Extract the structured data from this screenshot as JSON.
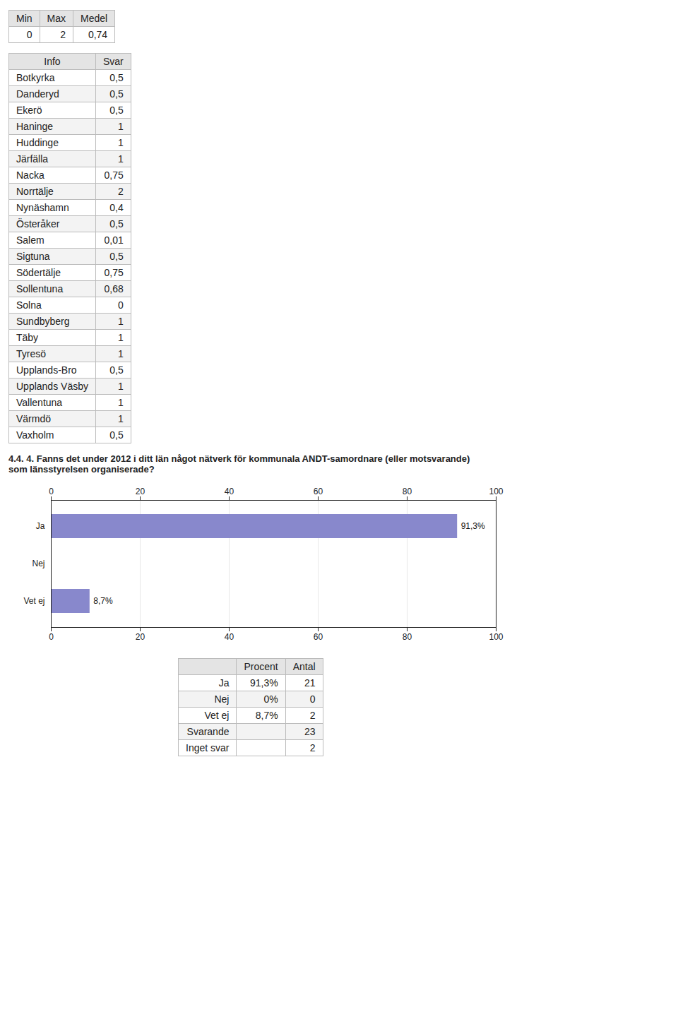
{
  "tables_above": [
    {
      "columns": [
        "Min",
        "Max",
        "Medel"
      ],
      "rows": [
        [
          "0",
          "2",
          "0,74"
        ]
      ]
    },
    {
      "columns": [
        "Info",
        "Svar"
      ],
      "rows": [
        [
          "Botkyrka",
          "0,5"
        ],
        [
          "Danderyd",
          "0,5"
        ],
        [
          "Ekerö",
          "0,5"
        ],
        [
          "Haninge",
          "1"
        ],
        [
          "Huddinge",
          "1"
        ],
        [
          "Järfälla",
          "1"
        ],
        [
          "Nacka",
          "0,75"
        ],
        [
          "Norrtälje",
          "2"
        ],
        [
          "Nynäshamn",
          "0,4"
        ],
        [
          "Österåker",
          "0,5"
        ],
        [
          "Salem",
          "0,01"
        ],
        [
          "Sigtuna",
          "0,5"
        ],
        [
          "Södertälje",
          "0,75"
        ],
        [
          "Sollentuna",
          "0,68"
        ],
        [
          "Solna",
          "0"
        ],
        [
          "Sundbyberg",
          "1"
        ],
        [
          "Täby",
          "1"
        ],
        [
          "Tyresö",
          "1"
        ],
        [
          "Upplands-Bro",
          "0,5"
        ],
        [
          "Upplands Väsby",
          "1"
        ],
        [
          "Vallentuna",
          "1"
        ],
        [
          "Värmdö",
          "1"
        ],
        [
          "Vaxholm",
          "0,5"
        ]
      ]
    }
  ],
  "chart_data": {
    "type": "bar",
    "orientation": "horizontal",
    "title": "4.4. 4. Fanns det under 2012 i ditt län något nätverk för kommunala ANDT-samordnare (eller motsvarande)",
    "subtitle": "som länsstyrelsen organiserade?",
    "categories": [
      "Ja",
      "Nej",
      "Vet ej"
    ],
    "values": [
      91.3,
      0.0,
      8.7
    ],
    "value_labels": [
      "91,3%",
      null,
      "8,7%"
    ],
    "data_labels": true,
    "color": "#8888cc",
    "xlim": [
      0,
      100
    ],
    "xticks": [
      0,
      20,
      40,
      60,
      80,
      100
    ],
    "grid": true
  },
  "tables_below": [
    {
      "columns": [
        null,
        "Procent",
        "Antal"
      ],
      "rows": [
        [
          "Ja",
          "91,3%",
          "21"
        ],
        [
          "Nej",
          "0%",
          "0"
        ],
        [
          "Vet ej",
          "8,7%",
          "2"
        ],
        [
          "Svarande",
          null,
          "23"
        ],
        [
          "Inget svar",
          null,
          "2"
        ]
      ]
    }
  ]
}
